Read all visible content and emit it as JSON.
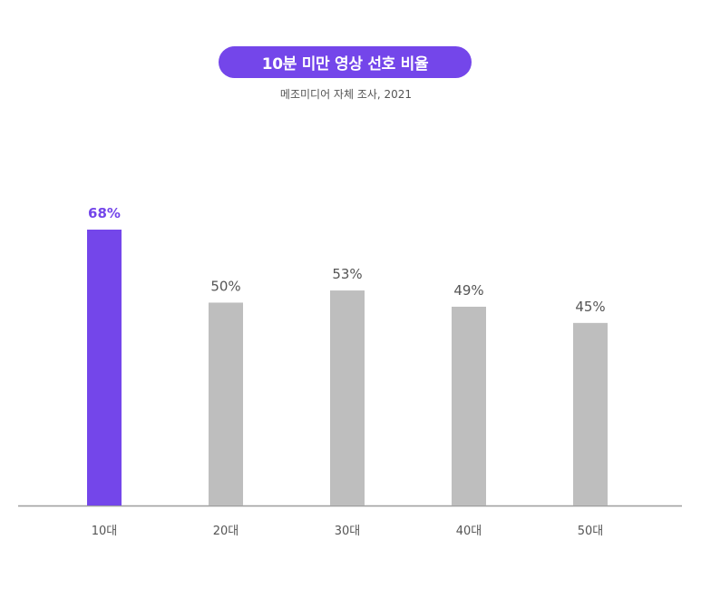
{
  "colors": {
    "accent": "#7446ea",
    "bar_default": "#bebebe",
    "axis": "#9e9e9e",
    "text": "#555555"
  },
  "chart_data": {
    "type": "bar",
    "title": "10분 미만 영상 선호 비율",
    "subtitle": "메조미디어 자체 조사, 2021",
    "categories": [
      "10대",
      "20대",
      "30대",
      "40대",
      "50대"
    ],
    "values": [
      68,
      50,
      53,
      49,
      45
    ],
    "value_labels": [
      "68%",
      "50%",
      "53%",
      "49%",
      "45%"
    ],
    "highlight_index": 0,
    "ylim": [
      0,
      68
    ],
    "grid": false,
    "legend": "none"
  }
}
